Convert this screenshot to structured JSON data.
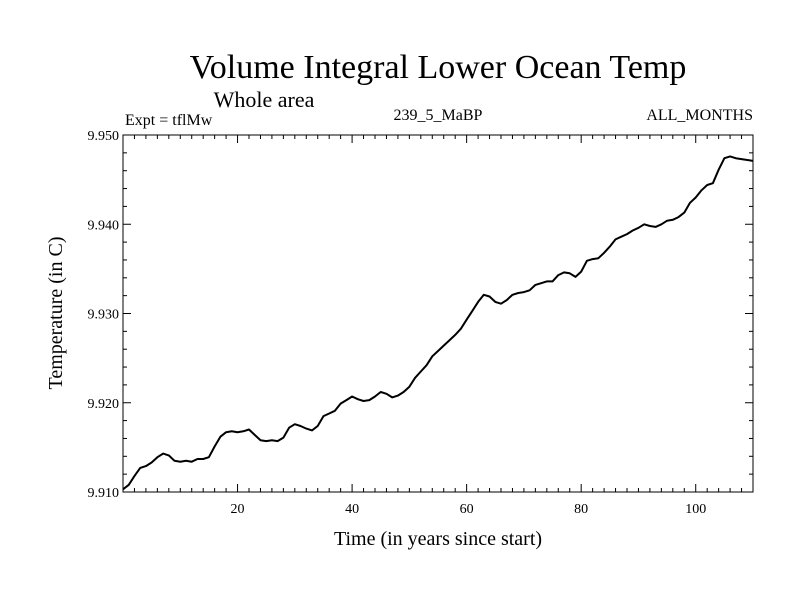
{
  "chart_data": {
    "type": "line",
    "title": "Volume Integral Lower Ocean Temp",
    "subtitle": "Whole area",
    "header_left": "Expt = tflMw",
    "header_center": "239_5_MaBP",
    "header_right": "ALL_MONTHS",
    "xlabel": "Time (in years since start)",
    "ylabel": "Temperature (in C)",
    "xlim": [
      0,
      110
    ],
    "ylim": [
      9.91,
      9.95
    ],
    "x_ticks": [
      20,
      40,
      60,
      80,
      100
    ],
    "y_ticks": [
      9.91,
      9.92,
      9.93,
      9.94,
      9.95
    ],
    "y_tick_labels": [
      "9.910",
      "9.920",
      "9.930",
      "9.940",
      "9.950"
    ],
    "grid": false,
    "line_color": "#000000",
    "series": [
      {
        "name": "tflMw",
        "x": [
          0,
          1,
          2,
          3,
          4,
          5,
          6,
          7,
          8,
          9,
          10,
          11,
          12,
          13,
          14,
          15,
          16,
          17,
          18,
          19,
          20,
          21,
          22,
          23,
          24,
          25,
          26,
          27,
          28,
          29,
          30,
          31,
          32,
          33,
          34,
          35,
          36,
          37,
          38,
          39,
          40,
          41,
          42,
          43,
          44,
          45,
          46,
          47,
          48,
          49,
          50,
          51,
          52,
          53,
          54,
          55,
          56,
          57,
          58,
          59,
          60,
          61,
          62,
          63,
          64,
          65,
          66,
          67,
          68,
          69,
          70,
          71,
          72,
          73,
          74,
          75,
          76,
          77,
          78,
          79,
          80,
          81,
          82,
          83,
          84,
          85,
          86,
          87,
          88,
          89,
          90,
          91,
          92,
          93,
          94,
          95,
          96,
          97,
          98,
          99,
          100,
          101,
          102,
          103,
          104,
          105,
          106,
          107,
          108,
          109,
          110
        ],
        "values": [
          9.9103,
          9.9108,
          9.9118,
          9.9127,
          9.9129,
          9.9133,
          9.9139,
          9.9143,
          9.9141,
          9.9135,
          9.9134,
          9.9135,
          9.9134,
          9.9137,
          9.9137,
          9.9139,
          9.9151,
          9.9162,
          9.9167,
          9.9168,
          9.9167,
          9.9168,
          9.917,
          9.9164,
          9.9158,
          9.9157,
          9.9158,
          9.9157,
          9.9161,
          9.9172,
          9.9176,
          9.9174,
          9.9171,
          9.9169,
          9.9174,
          9.9185,
          9.9188,
          9.9191,
          9.9199,
          9.9203,
          9.9207,
          9.9204,
          9.9202,
          9.9203,
          9.9207,
          9.9212,
          9.921,
          9.9206,
          9.9208,
          9.9212,
          9.9218,
          9.9228,
          9.9235,
          9.9242,
          9.9252,
          9.9258,
          9.9264,
          9.927,
          9.9276,
          9.9283,
          9.9293,
          9.9303,
          9.9313,
          9.9321,
          9.9319,
          9.9313,
          9.9311,
          9.9315,
          9.9321,
          9.9323,
          9.9324,
          9.9326,
          9.9332,
          9.9334,
          9.9336,
          9.9336,
          9.9343,
          9.9346,
          9.9345,
          9.9341,
          9.9347,
          9.9359,
          9.9361,
          9.9362,
          9.9368,
          9.9375,
          9.9383,
          9.9386,
          9.9389,
          9.9393,
          9.9396,
          9.94,
          9.9398,
          9.9397,
          9.94,
          9.9404,
          9.9405,
          9.9408,
          9.9413,
          9.9424,
          9.943,
          9.9438,
          9.9444,
          9.9446,
          9.9461,
          9.9474,
          9.9476,
          9.9474,
          9.9473,
          9.9472,
          9.9471
        ]
      }
    ]
  }
}
